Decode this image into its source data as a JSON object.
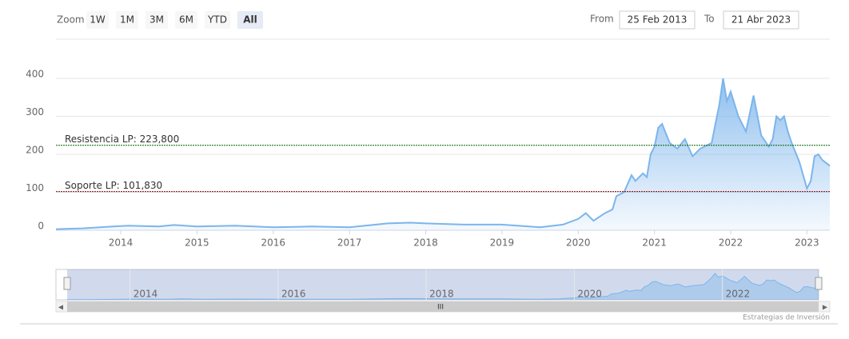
{
  "chart_data": {
    "type": "area",
    "range_selector": {
      "zoom_label": "Zoom",
      "buttons": [
        "1W",
        "1M",
        "3M",
        "6M",
        "YTD",
        "All"
      ],
      "selected": 5,
      "from_label": "From",
      "from": "25 Feb 2013",
      "to_label": "To",
      "to": "21 Abr 2023"
    },
    "x": [
      2013.15,
      2013.5,
      2013.9,
      2014.1,
      2014.5,
      2014.7,
      2015.0,
      2015.5,
      2016.0,
      2016.5,
      2017.0,
      2017.5,
      2017.8,
      2018.0,
      2018.5,
      2019.0,
      2019.5,
      2019.8,
      2020.0,
      2020.1,
      2020.2,
      2020.35,
      2020.45,
      2020.5,
      2020.6,
      2020.7,
      2020.75,
      2020.85,
      2020.9,
      2020.95,
      2021.0,
      2021.05,
      2021.1,
      2021.2,
      2021.3,
      2021.4,
      2021.5,
      2021.6,
      2021.75,
      2021.8,
      2021.85,
      2021.9,
      2021.95,
      2022.0,
      2022.1,
      2022.2,
      2022.3,
      2022.4,
      2022.5,
      2022.55,
      2022.6,
      2022.65,
      2022.7,
      2022.75,
      2022.8,
      2022.9,
      2023.0,
      2023.05,
      2023.1,
      2023.15,
      2023.2,
      2023.3
    ],
    "values": [
      3,
      5,
      10,
      12,
      10,
      14,
      10,
      12,
      8,
      10,
      8,
      18,
      20,
      18,
      15,
      15,
      8,
      15,
      30,
      45,
      25,
      45,
      55,
      90,
      100,
      145,
      130,
      150,
      140,
      200,
      220,
      270,
      280,
      230,
      215,
      240,
      195,
      215,
      230,
      280,
      330,
      400,
      340,
      365,
      300,
      260,
      355,
      250,
      220,
      240,
      300,
      290,
      300,
      260,
      230,
      180,
      110,
      130,
      195,
      200,
      185,
      170
    ],
    "color": "#7cb5ec",
    "xlim": [
      2013.15,
      2023.3
    ],
    "xticks": [
      2014,
      2015,
      2016,
      2017,
      2018,
      2019,
      2020,
      2021,
      2022,
      2023
    ],
    "ylim": [
      0,
      400
    ],
    "yticks": [
      0,
      100,
      200,
      300,
      400
    ],
    "grid": true,
    "plot_lines": [
      {
        "value": 223.8,
        "label": "Resistencia LP: 223,800",
        "color": "#006400"
      },
      {
        "value": 101.83,
        "label": "Soporte LP: 101,830",
        "color": "#8b0000"
      }
    ],
    "navigator_xticks": [
      2014,
      2016,
      2018,
      2020,
      2022
    ],
    "credits": "Estrategias de Inversión"
  }
}
